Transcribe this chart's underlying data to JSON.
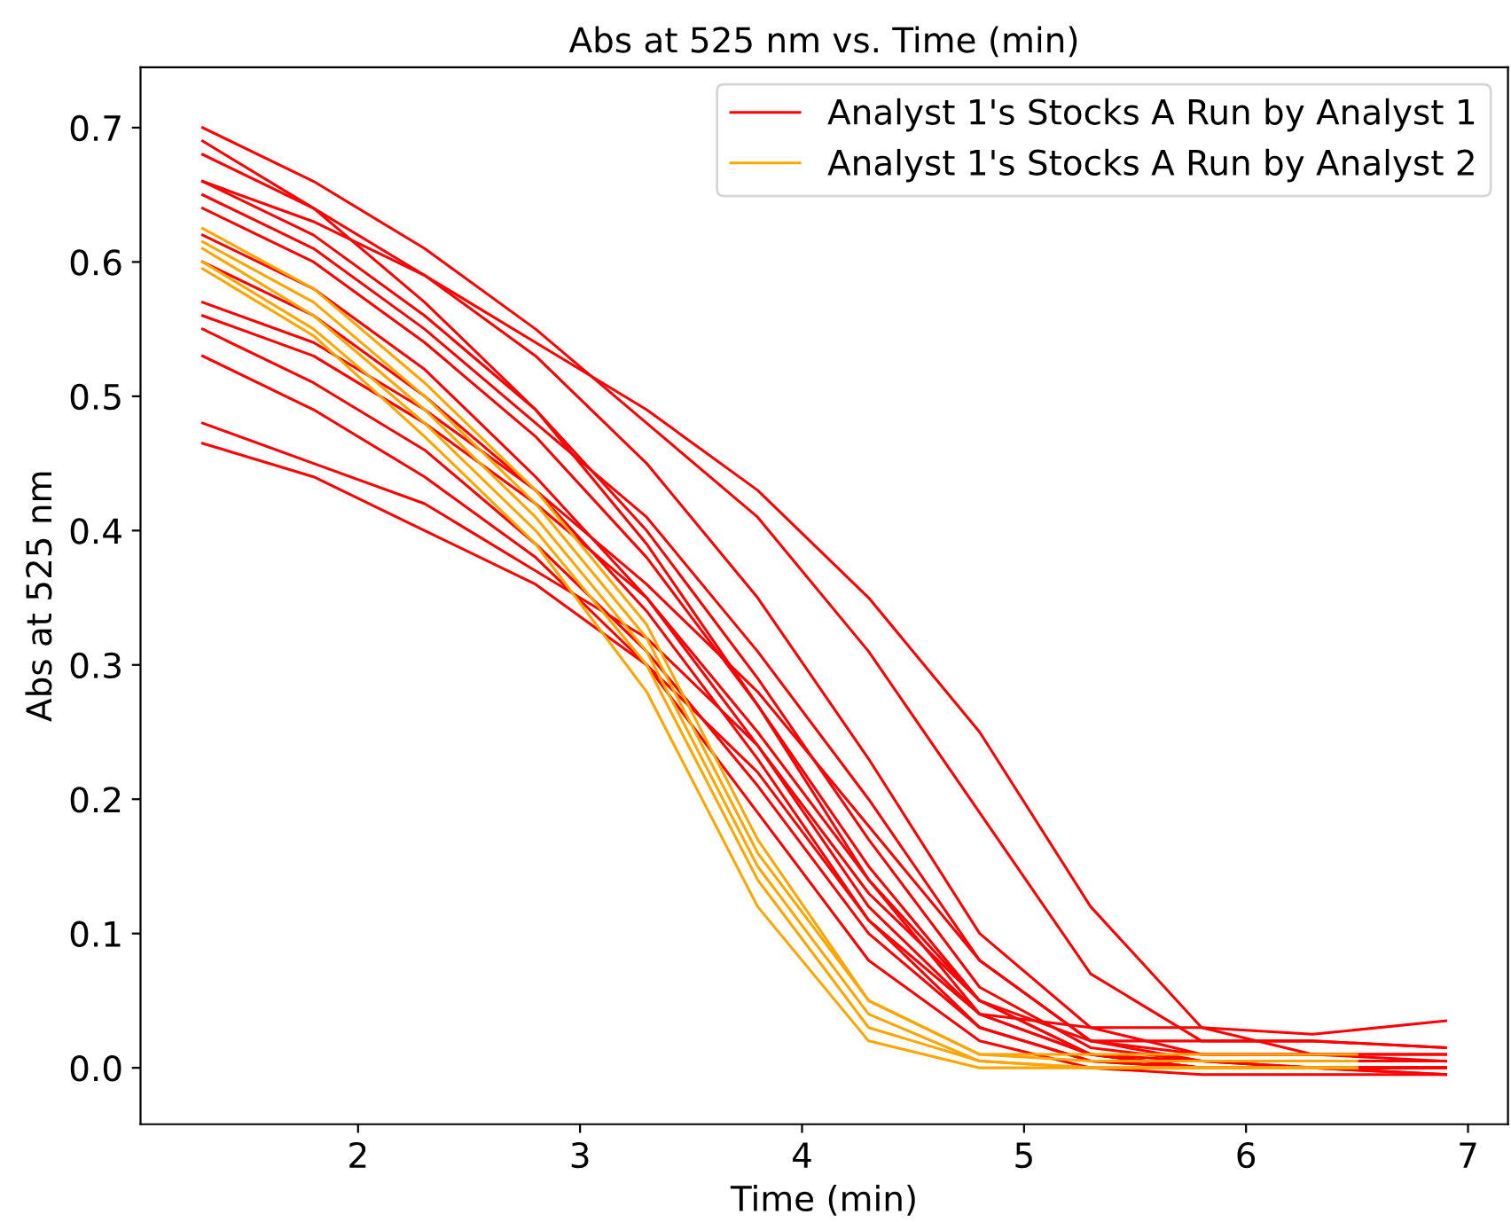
{
  "chart_data": {
    "type": "line",
    "title": "Abs at 525 nm vs. Time (min)",
    "xlabel": "Time (min)",
    "ylabel": "Abs at 525 nm",
    "x": [
      1.3,
      1.8,
      2.3,
      2.8,
      3.3,
      3.8,
      4.3,
      4.8,
      5.3,
      5.8,
      6.3,
      6.9
    ],
    "xlim": [
      1.02,
      7.18
    ],
    "xticks": [
      2,
      3,
      4,
      5,
      6,
      7
    ],
    "ylim": [
      -0.042,
      0.745
    ],
    "yticks": [
      {
        "value": 0,
        "label": "0.0"
      },
      0.1,
      0.2,
      0.3,
      0.4,
      0.5,
      0.6,
      0.7
    ],
    "grid": false,
    "legend": "top right",
    "line_style": "solid",
    "series": [
      {
        "name": "Analyst 1's Stocks A Run by Analyst 1",
        "color": "#ff0000",
        "values": [
          0.66,
          0.63,
          0.59,
          0.54,
          0.49,
          0.43,
          0.35,
          0.25,
          0.12,
          0.03,
          0.01,
          0.01
        ]
      },
      {
        "color": "#ff0000",
        "values": [
          0.7,
          0.66,
          0.61,
          0.55,
          0.48,
          0.41,
          0.31,
          0.19,
          0.07,
          0.02,
          0.02,
          0.015
        ]
      },
      {
        "color": "#ff0000",
        "values": [
          0.68,
          0.64,
          0.59,
          0.53,
          0.45,
          0.35,
          0.23,
          0.1,
          0.03,
          0.01,
          0.01,
          0.005
        ]
      },
      {
        "color": "#ff0000",
        "values": [
          0.66,
          0.62,
          0.56,
          0.49,
          0.4,
          0.29,
          0.17,
          0.06,
          0.015,
          0.005,
          0.0,
          0.0
        ]
      },
      {
        "color": "#ff0000",
        "values": [
          0.64,
          0.6,
          0.54,
          0.47,
          0.38,
          0.27,
          0.15,
          0.05,
          0.01,
          0.0,
          0.0,
          -0.005
        ]
      },
      {
        "color": "#ff0000",
        "values": [
          0.62,
          0.58,
          0.52,
          0.44,
          0.35,
          0.24,
          0.12,
          0.04,
          0.01,
          0.0,
          0.0,
          0.0
        ]
      },
      {
        "color": "#ff0000",
        "values": [
          0.69,
          0.64,
          0.57,
          0.49,
          0.39,
          0.27,
          0.14,
          0.04,
          0.01,
          0.0,
          0.0,
          -0.005
        ]
      },
      {
        "color": "#ff0000",
        "values": [
          0.56,
          0.53,
          0.48,
          0.42,
          0.35,
          0.25,
          0.14,
          0.05,
          0.01,
          0.005,
          0.0,
          0.0
        ]
      },
      {
        "color": "#ff0000",
        "values": [
          0.55,
          0.51,
          0.46,
          0.39,
          0.31,
          0.21,
          0.1,
          0.03,
          0.005,
          0.0,
          0.0,
          0.0
        ]
      },
      {
        "color": "#ff0000",
        "values": [
          0.53,
          0.49,
          0.44,
          0.38,
          0.3,
          0.19,
          0.08,
          0.02,
          0.0,
          -0.005,
          -0.005,
          -0.005
        ]
      },
      {
        "color": "#ff0000",
        "values": [
          0.48,
          0.45,
          0.42,
          0.37,
          0.32,
          0.24,
          0.13,
          0.05,
          0.02,
          0.02,
          0.02,
          0.015
        ]
      },
      {
        "color": "#ff0000",
        "values": [
          0.465,
          0.44,
          0.4,
          0.36,
          0.3,
          0.22,
          0.11,
          0.04,
          0.03,
          0.03,
          0.025,
          0.035
        ]
      },
      {
        "color": "#ff0000",
        "values": [
          0.65,
          0.61,
          0.55,
          0.48,
          0.41,
          0.31,
          0.2,
          0.08,
          0.02,
          0.01,
          0.01,
          0.01
        ]
      },
      {
        "color": "#ff0000",
        "values": [
          0.6,
          0.56,
          0.5,
          0.43,
          0.34,
          0.23,
          0.11,
          0.03,
          0.005,
          0.0,
          0.0,
          0.0
        ]
      },
      {
        "color": "#ff0000",
        "values": [
          0.57,
          0.54,
          0.49,
          0.43,
          0.36,
          0.28,
          0.18,
          0.08,
          0.02,
          0.005,
          0.005,
          0.005
        ]
      },
      {
        "name": "Analyst 1's Stocks A Run by Analyst 2",
        "color": "#ffa500",
        "x": [
          1.3,
          1.8,
          2.3,
          2.8,
          3.3,
          3.8,
          4.3,
          4.8,
          5.3,
          5.8,
          6.5
        ],
        "values": [
          0.625,
          0.58,
          0.51,
          0.43,
          0.33,
          0.17,
          0.05,
          0.01,
          0.005,
          0.005,
          0.005
        ]
      },
      {
        "color": "#ffa500",
        "x": [
          1.3,
          1.8,
          2.3,
          2.8,
          3.3,
          3.8,
          4.3,
          4.8,
          5.3,
          5.8,
          6.5
        ],
        "values": [
          0.61,
          0.56,
          0.49,
          0.41,
          0.31,
          0.15,
          0.04,
          0.005,
          0.0,
          0.0,
          0.0
        ]
      },
      {
        "color": "#ffa500",
        "x": [
          1.3,
          1.8,
          2.3,
          2.8,
          3.3,
          3.8,
          4.3,
          4.8,
          5.3,
          5.8,
          6.5
        ],
        "values": [
          0.6,
          0.55,
          0.48,
          0.4,
          0.3,
          0.14,
          0.03,
          0.005,
          0.0,
          0.0,
          0.0
        ]
      },
      {
        "color": "#ffa500",
        "x": [
          1.3,
          1.8,
          2.3,
          2.8,
          3.3,
          3.8,
          4.3,
          4.8,
          5.3,
          5.8,
          6.5
        ],
        "values": [
          0.595,
          0.545,
          0.47,
          0.39,
          0.28,
          0.12,
          0.02,
          0.0,
          0.0,
          0.0,
          0.0
        ]
      },
      {
        "color": "#ffa500",
        "x": [
          1.3,
          1.8,
          2.3,
          2.8,
          3.3,
          3.8,
          4.3,
          4.8,
          5.3,
          5.8,
          6.5
        ],
        "values": [
          0.615,
          0.57,
          0.5,
          0.42,
          0.32,
          0.16,
          0.05,
          0.01,
          0.01,
          0.01,
          0.01
        ]
      }
    ]
  }
}
